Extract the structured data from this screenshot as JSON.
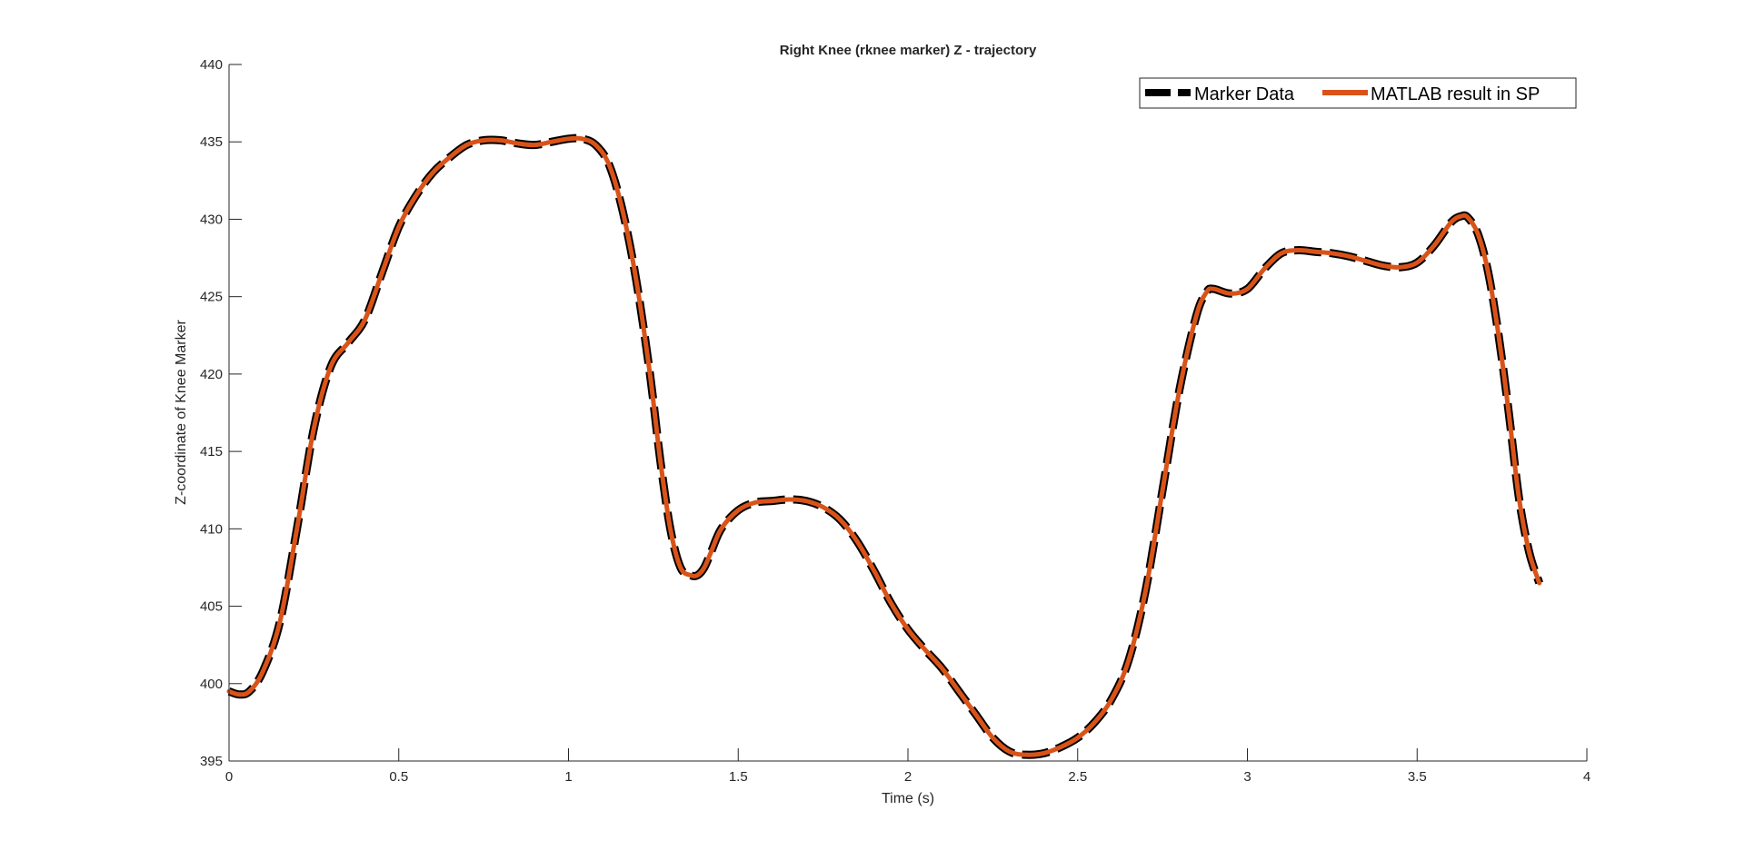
{
  "chart_data": {
    "type": "line",
    "title": "Right Knee (rknee marker) Z - trajectory",
    "xlabel": "Time (s)",
    "ylabel": "Z-coordinate of Knee Marker",
    "xlim": [
      0,
      4
    ],
    "ylim": [
      395,
      440
    ],
    "xticks": [
      "0",
      "0.5",
      "1",
      "1.5",
      "2",
      "2.5",
      "3",
      "3.5",
      "4"
    ],
    "yticks": [
      "395",
      "400",
      "405",
      "410",
      "415",
      "420",
      "425",
      "430",
      "435",
      "440"
    ],
    "grid": false,
    "legend_position": "top-right",
    "colors": {
      "marker": "#000000",
      "matlab": "#D95319",
      "axis": "#262626"
    },
    "series": [
      {
        "name": "Marker Data",
        "style": "dashed",
        "color": "#000000",
        "x": [
          0,
          0.03,
          0.06,
          0.1,
          0.15,
          0.2,
          0.25,
          0.3,
          0.35,
          0.4,
          0.45,
          0.5,
          0.55,
          0.6,
          0.65,
          0.7,
          0.75,
          0.8,
          0.85,
          0.9,
          0.95,
          1.0,
          1.04,
          1.08,
          1.12,
          1.16,
          1.2,
          1.24,
          1.27,
          1.3,
          1.33,
          1.36,
          1.38,
          1.4,
          1.42,
          1.45,
          1.5,
          1.55,
          1.6,
          1.65,
          1.7,
          1.75,
          1.8,
          1.85,
          1.9,
          1.95,
          2.0,
          2.05,
          2.1,
          2.15,
          2.2,
          2.25,
          2.3,
          2.35,
          2.4,
          2.45,
          2.5,
          2.55,
          2.6,
          2.65,
          2.7,
          2.75,
          2.8,
          2.85,
          2.88,
          2.9,
          2.95,
          3.0,
          3.05,
          3.1,
          3.15,
          3.2,
          3.25,
          3.3,
          3.35,
          3.4,
          3.45,
          3.5,
          3.55,
          3.6,
          3.63,
          3.65,
          3.68,
          3.71,
          3.74,
          3.77,
          3.8,
          3.83,
          3.86
        ],
        "y": [
          399.5,
          399.3,
          399.5,
          400.8,
          404.0,
          410.0,
          416.5,
          420.5,
          422.0,
          423.5,
          426.5,
          429.5,
          431.5,
          433.0,
          434.0,
          434.8,
          435.1,
          435.1,
          434.9,
          434.8,
          435.0,
          435.2,
          435.2,
          434.8,
          433.5,
          430.5,
          426.0,
          420.0,
          414.5,
          410.0,
          407.5,
          407.0,
          407.0,
          407.5,
          408.5,
          410.0,
          411.2,
          411.7,
          411.8,
          411.9,
          411.8,
          411.4,
          410.6,
          409.2,
          407.3,
          405.2,
          403.5,
          402.2,
          401.0,
          399.5,
          398.0,
          396.5,
          395.6,
          395.4,
          395.5,
          395.9,
          396.5,
          397.5,
          399.0,
          401.5,
          406.0,
          412.5,
          419.0,
          423.8,
          425.3,
          425.5,
          425.2,
          425.5,
          426.8,
          427.8,
          428.0,
          427.9,
          427.8,
          427.6,
          427.3,
          427.0,
          426.9,
          427.2,
          428.3,
          429.8,
          430.2,
          430.1,
          429.0,
          426.5,
          422.5,
          417.5,
          412.0,
          408.5,
          406.5
        ]
      },
      {
        "name": "MATLAB result in SP",
        "style": "solid",
        "color": "#D95319",
        "x": [
          0,
          0.03,
          0.06,
          0.1,
          0.15,
          0.2,
          0.25,
          0.3,
          0.35,
          0.4,
          0.45,
          0.5,
          0.55,
          0.6,
          0.65,
          0.7,
          0.75,
          0.8,
          0.85,
          0.9,
          0.95,
          1.0,
          1.04,
          1.08,
          1.12,
          1.16,
          1.2,
          1.24,
          1.27,
          1.3,
          1.33,
          1.36,
          1.38,
          1.4,
          1.42,
          1.45,
          1.5,
          1.55,
          1.6,
          1.65,
          1.7,
          1.75,
          1.8,
          1.85,
          1.9,
          1.95,
          2.0,
          2.05,
          2.1,
          2.15,
          2.2,
          2.25,
          2.3,
          2.35,
          2.4,
          2.45,
          2.5,
          2.55,
          2.6,
          2.65,
          2.7,
          2.75,
          2.8,
          2.85,
          2.88,
          2.9,
          2.95,
          3.0,
          3.05,
          3.1,
          3.15,
          3.2,
          3.25,
          3.3,
          3.35,
          3.4,
          3.45,
          3.5,
          3.55,
          3.6,
          3.63,
          3.65,
          3.68,
          3.71,
          3.74,
          3.77,
          3.8,
          3.83,
          3.86
        ],
        "y": [
          399.5,
          399.3,
          399.5,
          400.8,
          404.0,
          410.0,
          416.5,
          420.5,
          422.0,
          423.5,
          426.5,
          429.5,
          431.5,
          433.0,
          434.0,
          434.8,
          435.1,
          435.1,
          434.9,
          434.8,
          435.0,
          435.2,
          435.2,
          434.8,
          433.5,
          430.5,
          426.0,
          420.0,
          414.5,
          410.0,
          407.5,
          407.0,
          407.0,
          407.5,
          408.5,
          410.0,
          411.2,
          411.7,
          411.8,
          411.9,
          411.8,
          411.4,
          410.6,
          409.2,
          407.3,
          405.2,
          403.5,
          402.2,
          401.0,
          399.5,
          398.0,
          396.5,
          395.6,
          395.4,
          395.5,
          395.9,
          396.5,
          397.5,
          399.0,
          401.5,
          406.0,
          412.5,
          419.0,
          423.8,
          425.3,
          425.5,
          425.2,
          425.5,
          426.8,
          427.8,
          428.0,
          427.9,
          427.8,
          427.6,
          427.3,
          427.0,
          426.9,
          427.2,
          428.3,
          429.8,
          430.2,
          430.1,
          429.0,
          426.5,
          422.5,
          417.5,
          412.0,
          408.5,
          406.5
        ]
      }
    ]
  }
}
